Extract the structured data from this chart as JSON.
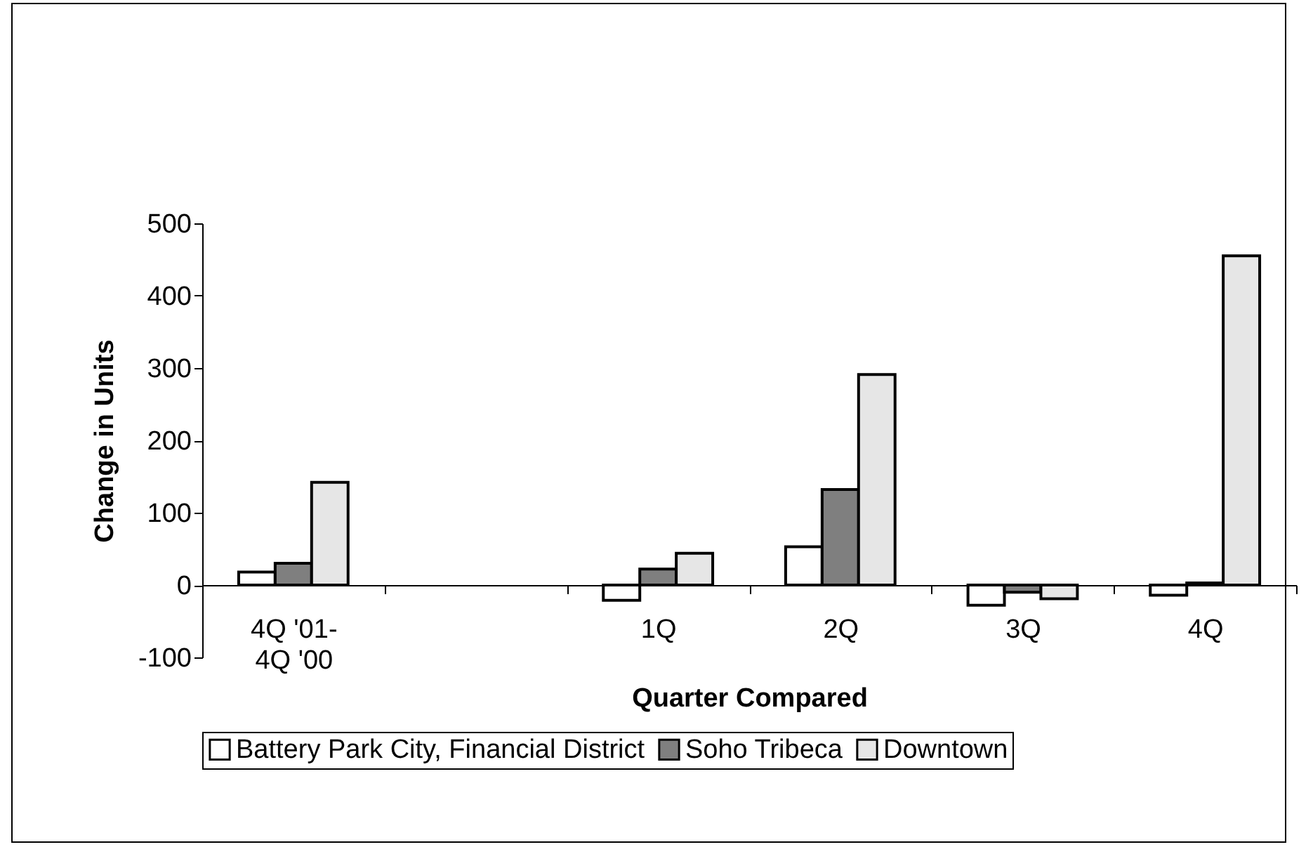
{
  "chart_data": {
    "type": "bar",
    "xlabel": "Quarter Compared",
    "ylabel": "Change in Units",
    "categories": [
      "4Q '01-\n4Q '00",
      null,
      "1Q",
      "2Q",
      "3Q",
      "4Q"
    ],
    "series": [
      {
        "name": "Battery Park City, Financial District",
        "color": "#ffffff",
        "values": [
          18,
          null,
          -21,
          53,
          -28,
          -14
        ]
      },
      {
        "name": "Soho Tribeca",
        "color": "#7f7f7f",
        "values": [
          30,
          null,
          22,
          132,
          -10,
          3
        ]
      },
      {
        "name": "Downtown",
        "color": "#e6e6e6",
        "values": [
          142,
          null,
          44,
          291,
          -19,
          455
        ]
      }
    ],
    "ylim": [
      -100,
      500
    ],
    "yticks": [
      -100,
      0,
      100,
      200,
      300,
      400,
      500
    ],
    "grid": false,
    "legend": "bottom"
  }
}
